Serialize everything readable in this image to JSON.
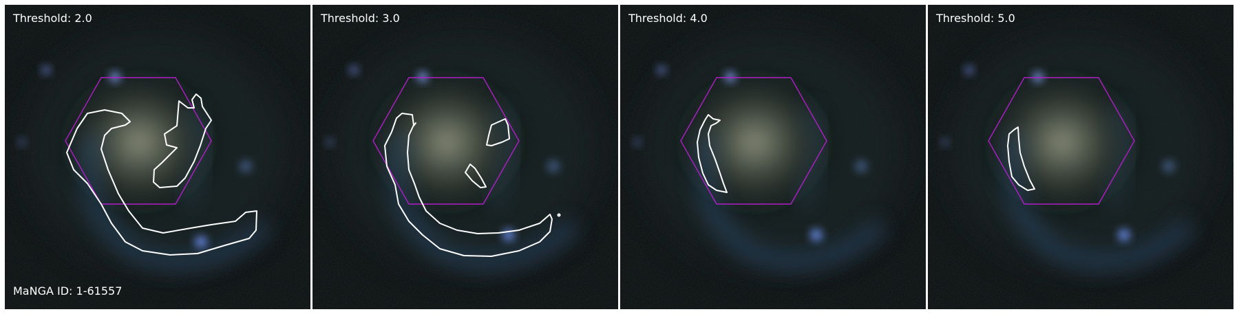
{
  "galaxy": {
    "manga_id_label": "MaNGA ID: 1-61557"
  },
  "panels": [
    {
      "threshold_label": "Threshold: 2.0",
      "threshold": 2.0
    },
    {
      "threshold_label": "Threshold: 3.0",
      "threshold": 3.0
    },
    {
      "threshold_label": "Threshold: 4.0",
      "threshold": 4.0
    },
    {
      "threshold_label": "Threshold: 5.0",
      "threshold": 5.0
    }
  ],
  "colors": {
    "contour": "#ffffff",
    "ifu_hexagon": "#b01ec8",
    "label": "#ffffff",
    "background": "#060808"
  }
}
